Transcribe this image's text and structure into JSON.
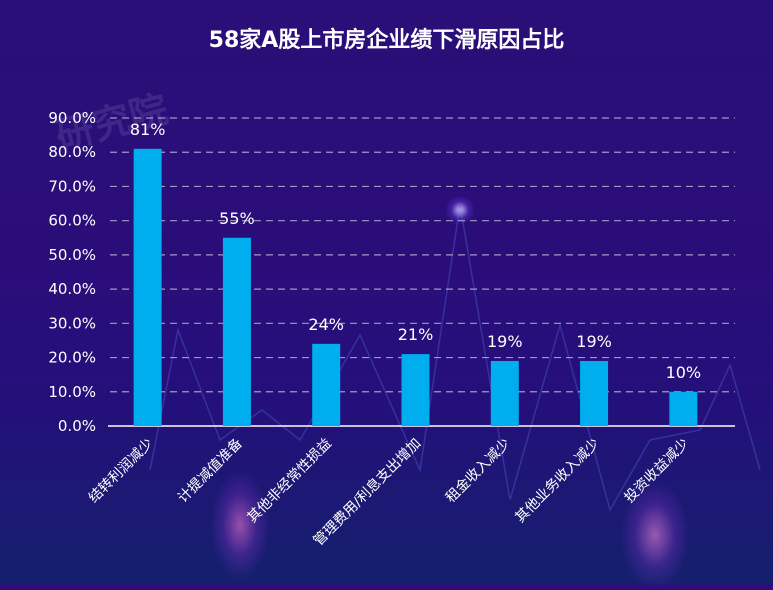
{
  "chart_data": {
    "type": "bar",
    "title": "58家A股上市房企业绩下滑原因占比",
    "categories": [
      "结转利润减少",
      "计提减值准备",
      "其他非经常性损益",
      "管理费用/利息支出增加",
      "租金收入减少",
      "其他业务收入减少",
      "投资收益减少"
    ],
    "values": [
      81,
      55,
      24,
      21,
      19,
      19,
      10
    ],
    "data_labels": [
      "81%",
      "55%",
      "24%",
      "21%",
      "19%",
      "19%",
      "10%"
    ],
    "y_ticks": [
      "0.0%",
      "10.0%",
      "20.0%",
      "30.0%",
      "40.0%",
      "50.0%",
      "60.0%",
      "70.0%",
      "80.0%",
      "90.0%"
    ],
    "ylim": [
      0,
      90
    ],
    "xlabel": "",
    "ylabel": "",
    "grid": true,
    "legend": "none",
    "bar_color": "#00aeef"
  },
  "watermark": "研究院"
}
